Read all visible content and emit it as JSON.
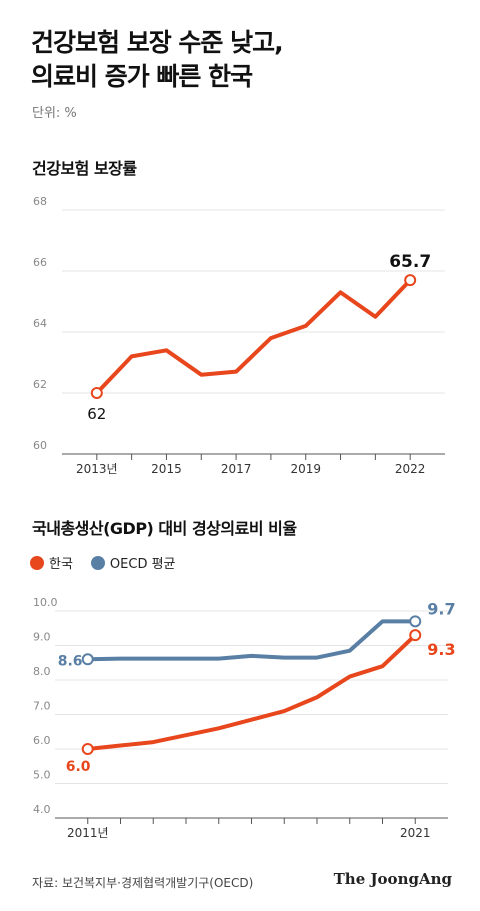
{
  "headline": [
    "건강보험 보장 수준 낮고,",
    "의료비 증가 빠른 한국"
  ],
  "unit": "단위: %",
  "source": "자료: 보건복지부·경제협력개발기구(OECD)",
  "brand": "The JoongAng",
  "chart_data": [
    {
      "type": "line",
      "title": "건강보험 보장률",
      "ylim": [
        60,
        68
      ],
      "yticks": [
        "60",
        "62",
        "64",
        "66",
        "68"
      ],
      "xlim": [
        2012,
        2023
      ],
      "xticks": [
        {
          "x": 2013,
          "label": "2013년"
        },
        {
          "x": 2015,
          "label": "2015"
        },
        {
          "x": 2017,
          "label": "2017"
        },
        {
          "x": 2019,
          "label": "2019"
        },
        {
          "x": 2022,
          "label": "2022"
        }
      ],
      "grid": false,
      "series": [
        {
          "color": "#e8461c",
          "x": [
            2013,
            2014,
            2015,
            2016,
            2017,
            2018,
            2019,
            2020,
            2021,
            2022
          ],
          "values": [
            62.0,
            63.2,
            63.4,
            62.6,
            62.7,
            63.8,
            64.2,
            65.3,
            64.5,
            65.7
          ],
          "start_label": "62",
          "end_label": "65.7"
        }
      ]
    },
    {
      "type": "line",
      "title": "국내총생산(GDP) 대비 경상의료비 비율",
      "ylim": [
        4.0,
        10.0
      ],
      "yticks": [
        "4.0",
        "5.0",
        "6.0",
        "7.0",
        "8.0",
        "9.0",
        "10.0"
      ],
      "xlim": [
        2010,
        2022
      ],
      "xticks": [
        {
          "x": 2011,
          "label": "2011년"
        },
        {
          "x": 2021,
          "label": "2021"
        }
      ],
      "legend_position": "top-left",
      "grid": false,
      "series": [
        {
          "name": "OECD 평균",
          "color": "#5a7fa5",
          "x": [
            2011,
            2012,
            2013,
            2014,
            2015,
            2016,
            2017,
            2018,
            2019,
            2020,
            2021
          ],
          "values": [
            8.6,
            8.62,
            8.62,
            8.62,
            8.62,
            8.7,
            8.65,
            8.65,
            8.85,
            9.7,
            9.7
          ],
          "start_label": "8.6",
          "end_label": "9.7"
        },
        {
          "name": "한국",
          "color": "#e8461c",
          "x": [
            2011,
            2012,
            2013,
            2014,
            2015,
            2016,
            2017,
            2018,
            2019,
            2020,
            2021
          ],
          "values": [
            6.0,
            6.1,
            6.2,
            6.4,
            6.6,
            6.85,
            7.1,
            7.5,
            8.1,
            8.4,
            9.3
          ],
          "start_label": "6.0",
          "end_label": "9.3"
        }
      ]
    }
  ]
}
